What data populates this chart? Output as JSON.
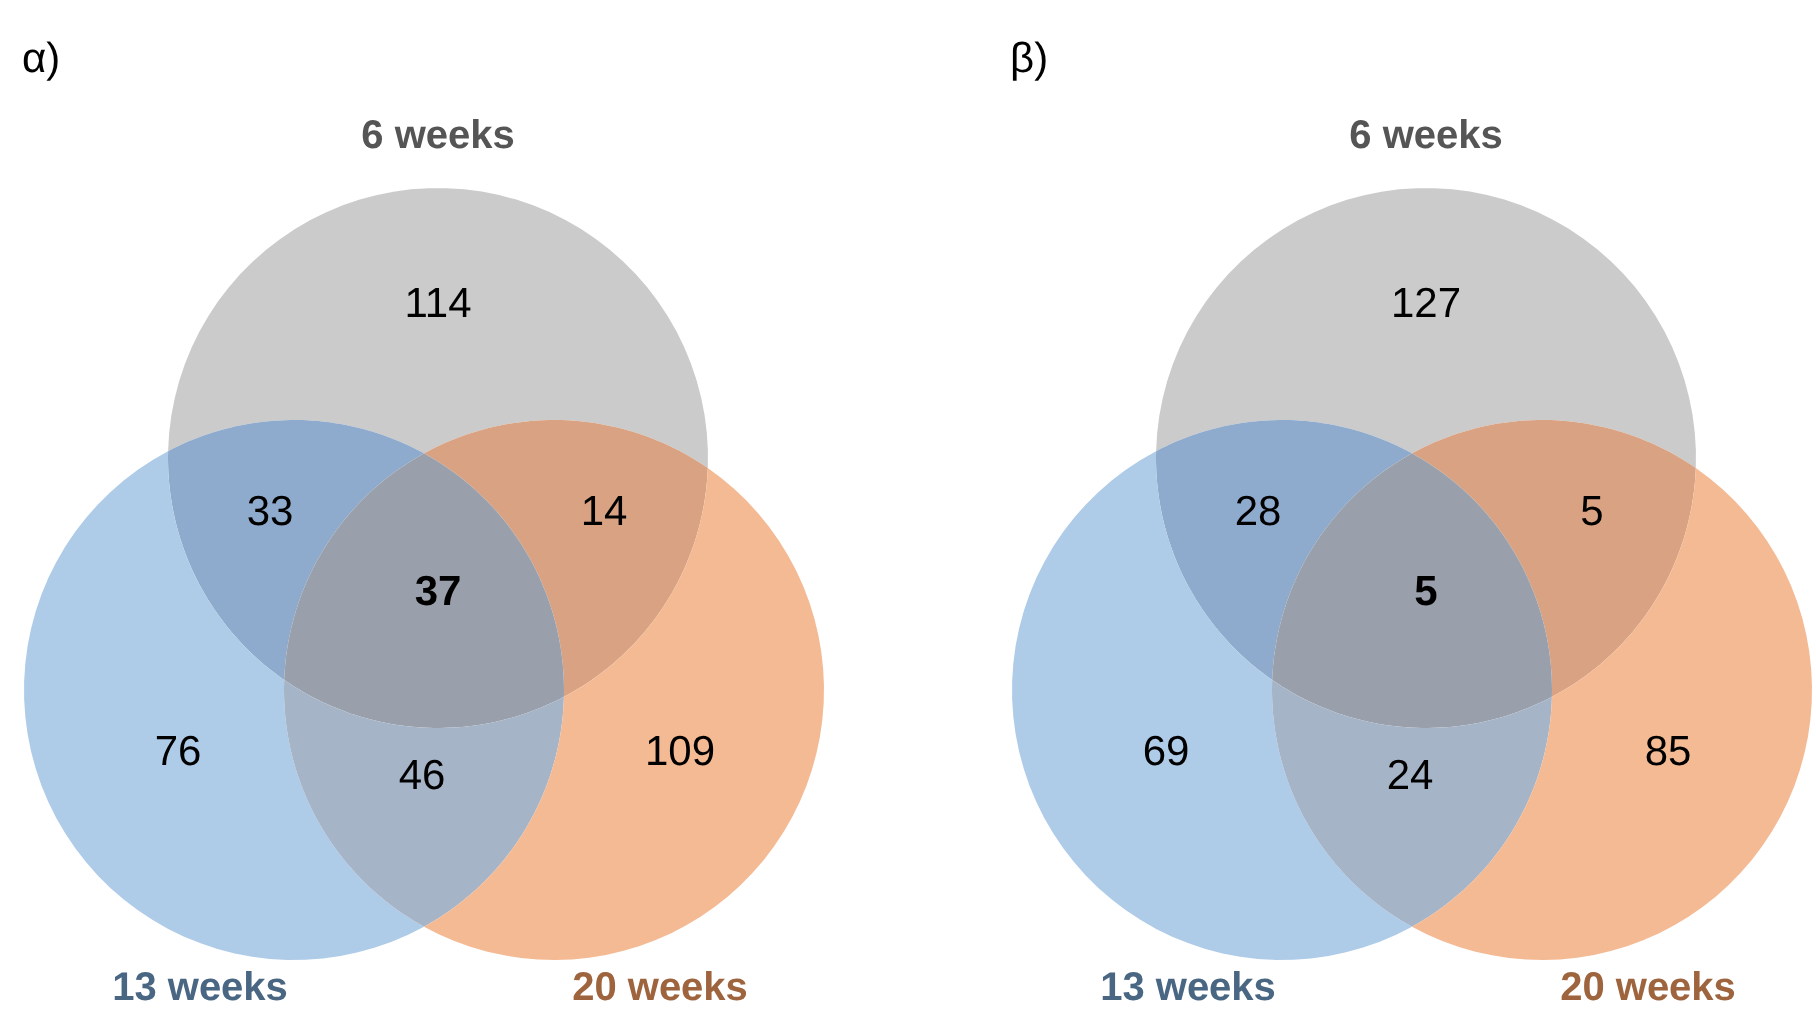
{
  "chart_data": [
    {
      "type": "other",
      "title": "α)",
      "categories": [
        null,
        null,
        null,
        null,
        null,
        null,
        null
      ],
      "values": [
        114,
        33,
        14,
        37,
        76,
        46,
        109
      ],
      "data_labels": true,
      "colors": [
        "#cbcbcb",
        "#8eaacc",
        "#d9a383",
        "#9aa0ab",
        "#aecbe8",
        "#a6b4c8",
        "#f4ba94"
      ],
      "annotations": [
        "6 weeks",
        "13 weeks",
        "20 weeks"
      ]
    },
    {
      "type": "other",
      "title": "β)",
      "categories": [
        null,
        null,
        null,
        null,
        null,
        null,
        null
      ],
      "values": [
        127,
        28,
        5,
        5,
        69,
        24,
        85
      ],
      "data_labels": true,
      "colors": [
        "#cbcbcb",
        "#8eaacc",
        "#d9a383",
        "#9aa0ab",
        "#aecbe8",
        "#a6b4c8",
        "#f4ba94"
      ],
      "annotations": [
        "6 weeks",
        "13 weeks",
        "20 weeks"
      ]
    }
  ]
}
